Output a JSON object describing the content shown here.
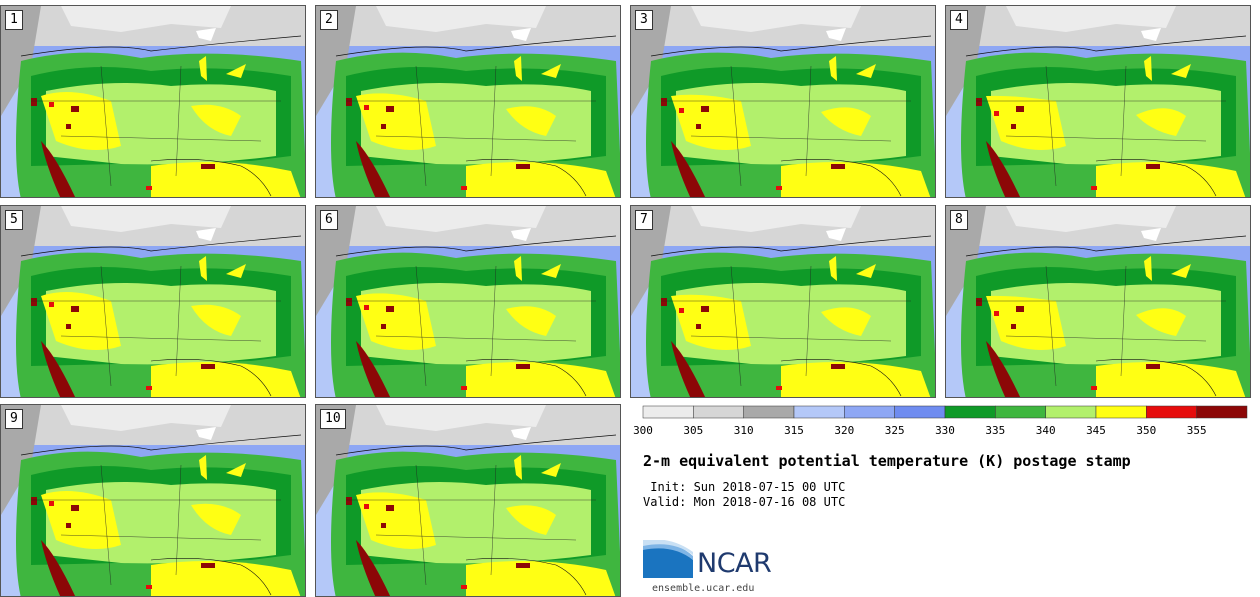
{
  "panels": [
    {
      "label": "1"
    },
    {
      "label": "2"
    },
    {
      "label": "3"
    },
    {
      "label": "4"
    },
    {
      "label": "5"
    },
    {
      "label": "6"
    },
    {
      "label": "7"
    },
    {
      "label": "8"
    },
    {
      "label": "9"
    },
    {
      "label": "10"
    }
  ],
  "colorbar": {
    "colors": [
      "#ececec",
      "#d6d6d6",
      "#a9a9a9",
      "#b4c8f8",
      "#8ea7f4",
      "#6f8cf0",
      "#0f9a28",
      "#3fb63f",
      "#b2f06c",
      "#ffff14",
      "#e60c0c",
      "#8c0707"
    ],
    "ticks": [
      "300",
      "305",
      "310",
      "315",
      "320",
      "325",
      "330",
      "335",
      "340",
      "345",
      "350",
      "355"
    ]
  },
  "title": "2-m equivalent potential temperature (K) postage stamp",
  "init": " Init: Sun 2018-07-15 00 UTC",
  "valid": "Valid: Mon 2018-07-16 08 UTC",
  "logo_text": "NCAR",
  "url": "ensemble.ucar.edu"
}
